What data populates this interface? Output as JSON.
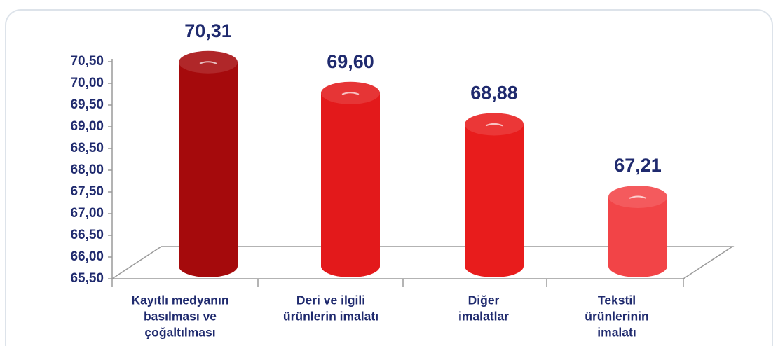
{
  "chart_data": {
    "type": "cylinder-bar",
    "categories": [
      [
        "Kayıtlı medyanın",
        "basılması ve",
        "çoğaltılması"
      ],
      [
        "Deri ve ilgili",
        "ürünlerin imalatı"
      ],
      [
        "Diğer",
        "imalatlar"
      ],
      [
        "Tekstil",
        "ürünlerinin",
        "imalatı"
      ]
    ],
    "values": [
      70.31,
      69.6,
      68.88,
      67.21
    ],
    "value_labels": [
      "70,31",
      "69,60",
      "68,88",
      "67,21"
    ],
    "colors": [
      "#a50a0c",
      "#e3191b",
      "#e81c1c",
      "#f24447"
    ],
    "ylim": [
      65.5,
      70.5
    ],
    "yticks": [
      {
        "value": 65.5,
        "label": "65,50"
      },
      {
        "value": 66,
        "label": "66,00"
      },
      {
        "value": 66.5,
        "label": "66,50"
      },
      {
        "value": 67,
        "label": "67,00"
      },
      {
        "value": 67.5,
        "label": "67,50"
      },
      {
        "value": 68,
        "label": "68,00"
      },
      {
        "value": 68.5,
        "label": "68,50"
      },
      {
        "value": 69,
        "label": "69,00"
      },
      {
        "value": 69.5,
        "label": "69,50"
      },
      {
        "value": 70,
        "label": "70,00"
      },
      {
        "value": 70.5,
        "label": "70,50"
      }
    ]
  }
}
